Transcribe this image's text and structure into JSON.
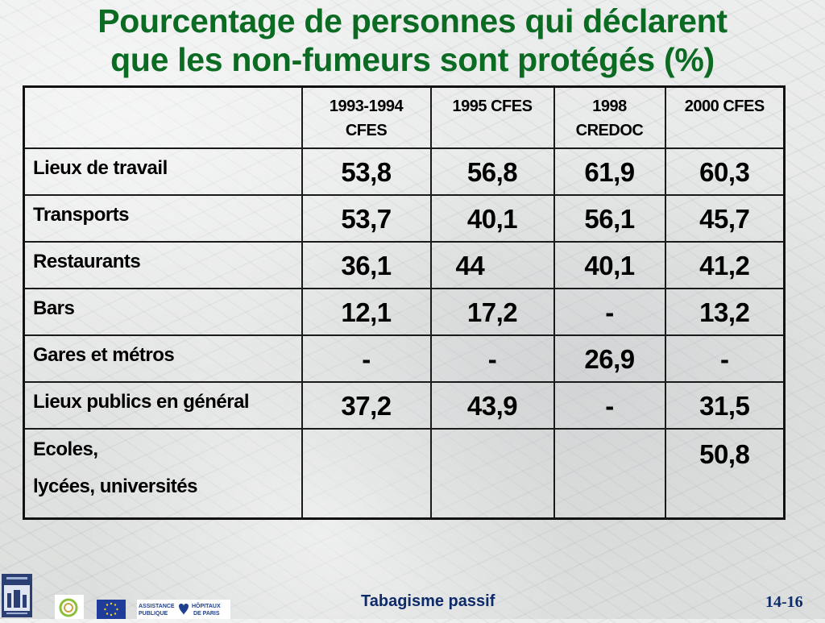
{
  "slide": {
    "title_line1": "Pourcentage de personnes qui déclarent",
    "title_line2": "que les non-fumeurs sont protégés (%)",
    "footer_title": "Tabagisme passif",
    "slide_number": "14-16"
  },
  "table": {
    "columns": [
      {
        "line1": "1993-1994",
        "line2": "CFES"
      },
      {
        "line1": "1995 CFES",
        "line2": ""
      },
      {
        "line1": "1998",
        "line2": "CREDOC"
      },
      {
        "line1": "2000 CFES",
        "line2": ""
      }
    ],
    "rows": [
      {
        "label": "Lieux de travail",
        "values": [
          "53,8",
          "56,8",
          "61,9",
          "60,3"
        ]
      },
      {
        "label": "Transports",
        "values": [
          "53,7",
          "40,1",
          "56,1",
          "45,7"
        ]
      },
      {
        "label": "Restaurants",
        "values": [
          "36,1",
          "44",
          "40,1",
          "41,2"
        ]
      },
      {
        "label": "Bars",
        "values": [
          "12,1",
          "17,2",
          "-",
          "13,2"
        ]
      },
      {
        "label": "Gares et métros",
        "values": [
          "-",
          "-",
          "26,9",
          "-"
        ]
      },
      {
        "label": "Lieux publics en général",
        "values": [
          "37,2",
          "43,9",
          "-",
          "31,5"
        ]
      },
      {
        "label_line1": "Ecoles,",
        "label_line2": "lycées, universités",
        "values": [
          "",
          "",
          "",
          "50,8"
        ]
      }
    ]
  },
  "logos": {
    "aphp_line1": "ASSISTANCE",
    "aphp_line2": "PUBLIQUE",
    "aphp_line3": "HÔPITAUX",
    "aphp_line4": "DE PARIS"
  },
  "colors": {
    "title": "#0b6b22",
    "footer": "#0d2a6b"
  }
}
